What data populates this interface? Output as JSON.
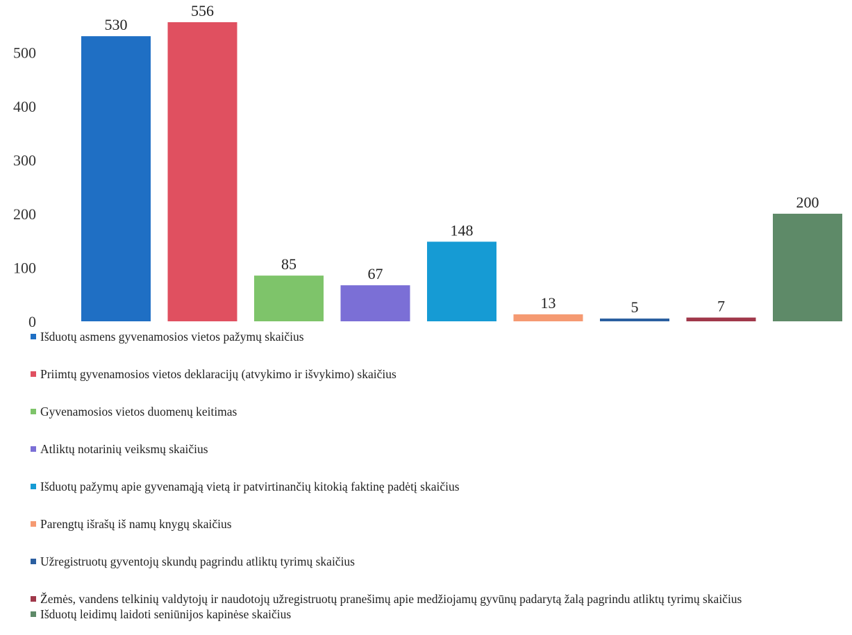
{
  "chart_data": {
    "type": "bar",
    "ylim": [
      0,
      556
    ],
    "yticks": [
      0,
      100,
      200,
      300,
      400,
      500
    ],
    "grid": false,
    "legend_position": "bottom",
    "series": [
      {
        "name": "Išduotų asmens gyvenamosios vietos pažymų skaičius",
        "value": 530,
        "label": "530",
        "color": "#1f6fc4"
      },
      {
        "name": "Priimtų gyvenamosios vietos deklaracijų (atvykimo ir išvykimo) skaičius",
        "value": 556,
        "label": "556",
        "color": "#e05060"
      },
      {
        "name": "Gyvenamosios vietos duomenų keitimas",
        "value": 85,
        "label": "85",
        "color": "#7ec46a"
      },
      {
        "name": "Atliktų notarinių veiksmų skaičius",
        "value": 67,
        "label": "67",
        "color": "#7b6fd6"
      },
      {
        "name": "Išduotų pažymų apie gyvenamąją vietą ir patvirtinančių kitokią faktinę padėtį skaičius",
        "value": 148,
        "label": "148",
        "color": "#169bd4"
      },
      {
        "name": "Parengtų išrašų iš namų knygų skaičius",
        "value": 13,
        "label": "13",
        "color": "#f59a72"
      },
      {
        "name": "Užregistruotų gyventojų skundų pagrindu atliktų tyrimų skaičius",
        "value": 5,
        "label": "5",
        "color": "#2b5fa0"
      },
      {
        "name": "Žemės, vandens telkinių valdytojų ir naudotojų užregistruotų pranešimų apie medžiojamų gyvūnų padarytą žalą pagrindu atliktų tyrimų skaičius",
        "value": 7,
        "label": "7",
        "color": "#a0384a"
      },
      {
        "name": "Išduotų leidimų laidoti seniūnijos kapinėse skaičius",
        "value": 200,
        "label": "200",
        "color": "#5e8a68"
      }
    ]
  }
}
